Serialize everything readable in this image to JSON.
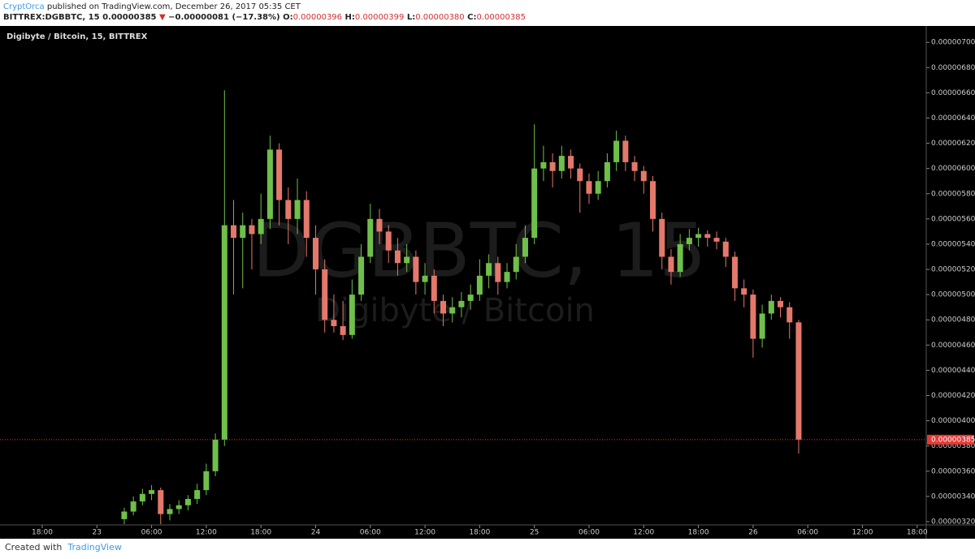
{
  "header": {
    "author": "CryptOrca",
    "published": " published on TradingView.com, December 26, 2017 05:35 CET",
    "symbol": "BITTREX:DGBBTC, 15",
    "last": "0.00000385",
    "arrow": "▼",
    "change": "−0.00000081 (−17.38%)",
    "o_label": "O:",
    "o": "0.00000396",
    "h_label": "H:",
    "h": "0.00000399",
    "l_label": "L:",
    "l": "0.00000380",
    "c_label": "C:",
    "c": "0.00000385"
  },
  "chart_data": {
    "type": "candlestick",
    "title": "Digibyte / Bitcoin, 15, BITTREX",
    "watermark": "DGBBTC, 15",
    "watermark_sub": "Digibyte / Bitcoin",
    "up_color": "#6fbf4a",
    "down_color": "#e3786b",
    "categories": [
      null,
      null,
      null,
      null,
      "18:00",
      null,
      null,
      null,
      null,
      null,
      "23",
      null,
      null,
      null,
      null,
      null,
      "06:00",
      null,
      null,
      null,
      null,
      null,
      "12:00",
      null,
      null,
      null,
      null,
      null,
      "18:00",
      null,
      null,
      null,
      null,
      null,
      "24",
      null,
      null,
      null,
      null,
      null,
      "06:00",
      null,
      null,
      null,
      null,
      null,
      "12:00",
      null,
      null,
      null,
      null,
      null,
      "18:00",
      null,
      null,
      null,
      null,
      null,
      "25",
      null,
      null,
      null,
      null,
      null,
      "06:00",
      null,
      null,
      null,
      null,
      null,
      "12:00",
      null,
      null,
      null,
      null,
      null,
      "18:00",
      null,
      null,
      null,
      null,
      null,
      "26",
      null,
      null,
      null,
      null,
      null,
      "06:00",
      null,
      null,
      null,
      null,
      null,
      "12:00",
      null,
      null,
      null,
      null,
      null,
      "18:00",
      null
    ],
    "open": [
      null,
      null,
      null,
      null,
      null,
      null,
      null,
      null,
      null,
      null,
      null,
      null,
      null,
      3.22e-06,
      3.28e-06,
      3.36e-06,
      3.42e-06,
      3.45e-06,
      3.26e-06,
      3.3e-06,
      3.33e-06,
      3.38e-06,
      3.45e-06,
      3.6e-06,
      3.85e-06,
      5.55e-06,
      5.45e-06,
      5.55e-06,
      5.48e-06,
      5.6e-06,
      6.15e-06,
      5.75e-06,
      5.6e-06,
      5.75e-06,
      5.45e-06,
      5.2e-06,
      4.8e-06,
      4.75e-06,
      4.68e-06,
      5e-06,
      5.3e-06,
      5.6e-06,
      5.5e-06,
      5.35e-06,
      5.25e-06,
      5.3e-06,
      5.1e-06,
      5.15e-06,
      4.95e-06,
      4.85e-06,
      4.9e-06,
      4.95e-06,
      5e-06,
      5.15e-06,
      5.25e-06,
      5.1e-06,
      5.18e-06,
      5.3e-06,
      5.45e-06,
      6e-06,
      6.05e-06,
      5.98e-06,
      6.1e-06,
      6e-06,
      5.9e-06,
      5.8e-06,
      5.9e-06,
      6.05e-06,
      6.22e-06,
      6.05e-06,
      5.98e-06,
      5.9e-06,
      5.6e-06,
      5.3e-06,
      5.18e-06,
      5.4e-06,
      5.45e-06,
      5.48e-06,
      5.45e-06,
      5.42e-06,
      5.3e-06,
      5.05e-06,
      5e-06,
      4.65e-06,
      4.85e-06,
      4.95e-06,
      4.9e-06,
      4.78e-06,
      null,
      null,
      null,
      null,
      null,
      null,
      null,
      null,
      null,
      null,
      null,
      null,
      null,
      null
    ],
    "high": [
      null,
      null,
      null,
      null,
      null,
      null,
      null,
      null,
      null,
      null,
      null,
      null,
      null,
      3.31e-06,
      3.4e-06,
      3.46e-06,
      3.49e-06,
      3.47e-06,
      3.34e-06,
      3.37e-06,
      3.41e-06,
      3.5e-06,
      3.66e-06,
      3.9e-06,
      6.62e-06,
      5.75e-06,
      5.65e-06,
      5.6e-06,
      5.8e-06,
      6.26e-06,
      6.2e-06,
      5.85e-06,
      5.92e-06,
      5.82e-06,
      5.55e-06,
      5.28e-06,
      5e-06,
      4.95e-06,
      5.12e-06,
      5.4e-06,
      5.72e-06,
      5.68e-06,
      5.55e-06,
      5.45e-06,
      5.4e-06,
      5.35e-06,
      5.25e-06,
      5.2e-06,
      5e-06,
      4.98e-06,
      5.02e-06,
      5.08e-06,
      5.28e-06,
      5.32e-06,
      5.3e-06,
      5.25e-06,
      5.4e-06,
      5.55e-06,
      6.35e-06,
      6.18e-06,
      6.12e-06,
      6.18e-06,
      6.15e-06,
      6.04e-06,
      5.96e-06,
      5.98e-06,
      6.12e-06,
      6.3e-06,
      6.26e-06,
      6.1e-06,
      6.02e-06,
      5.94e-06,
      5.65e-06,
      5.36e-06,
      5.48e-06,
      5.52e-06,
      5.53e-06,
      5.51e-06,
      5.5e-06,
      5.45e-06,
      5.34e-06,
      5.12e-06,
      5.04e-06,
      4.92e-06,
      5e-06,
      4.98e-06,
      4.94e-06,
      4.8e-06,
      null,
      null,
      null,
      null,
      null,
      null,
      null,
      null,
      null,
      null,
      null,
      null,
      null,
      null
    ],
    "low": [
      null,
      null,
      null,
      null,
      null,
      null,
      null,
      null,
      null,
      null,
      null,
      null,
      null,
      3.18e-06,
      3.25e-06,
      3.33e-06,
      3.37e-06,
      3.18e-06,
      3.21e-06,
      3.26e-06,
      3.29e-06,
      3.34e-06,
      3.41e-06,
      3.56e-06,
      3.8e-06,
      5e-06,
      5.05e-06,
      5.2e-06,
      5.4e-06,
      5.52e-06,
      5.55e-06,
      5.4e-06,
      5.48e-06,
      5.3e-06,
      5e-06,
      4.7e-06,
      4.7e-06,
      4.64e-06,
      4.65e-06,
      4.95e-06,
      5.25e-06,
      5.4e-06,
      5.25e-06,
      5.15e-06,
      5.18e-06,
      5e-06,
      5e-06,
      4.85e-06,
      4.75e-06,
      4.78e-06,
      4.82e-06,
      4.88e-06,
      4.95e-06,
      5.05e-06,
      5e-06,
      5.05e-06,
      5.12e-06,
      5.25e-06,
      5.4e-06,
      5.9e-06,
      5.85e-06,
      5.92e-06,
      5.92e-06,
      5.65e-06,
      5.72e-06,
      5.75e-06,
      5.85e-06,
      5.98e-06,
      5.98e-06,
      5.9e-06,
      5.8e-06,
      5.5e-06,
      5.2e-06,
      5.08e-06,
      5.14e-06,
      5.35e-06,
      5.38e-06,
      5.38e-06,
      5.36e-06,
      5.22e-06,
      4.95e-06,
      4.9e-06,
      4.5e-06,
      4.58e-06,
      4.8e-06,
      4.82e-06,
      4.65e-06,
      3.74e-06,
      null,
      null,
      null,
      null,
      null,
      null,
      null,
      null,
      null,
      null,
      null,
      null,
      null,
      null
    ],
    "close": [
      null,
      null,
      null,
      null,
      null,
      null,
      null,
      null,
      null,
      null,
      null,
      null,
      null,
      3.28e-06,
      3.36e-06,
      3.42e-06,
      3.45e-06,
      3.26e-06,
      3.3e-06,
      3.33e-06,
      3.38e-06,
      3.45e-06,
      3.6e-06,
      3.85e-06,
      5.55e-06,
      5.45e-06,
      5.55e-06,
      5.48e-06,
      5.6e-06,
      6.15e-06,
      5.75e-06,
      5.6e-06,
      5.75e-06,
      5.45e-06,
      5.2e-06,
      4.8e-06,
      4.75e-06,
      4.68e-06,
      5e-06,
      5.3e-06,
      5.6e-06,
      5.5e-06,
      5.35e-06,
      5.25e-06,
      5.3e-06,
      5.1e-06,
      5.15e-06,
      4.95e-06,
      4.85e-06,
      4.9e-06,
      4.95e-06,
      5e-06,
      5.15e-06,
      5.25e-06,
      5.1e-06,
      5.18e-06,
      5.3e-06,
      5.45e-06,
      6e-06,
      6.05e-06,
      5.98e-06,
      6.1e-06,
      6e-06,
      5.9e-06,
      5.8e-06,
      5.9e-06,
      6.05e-06,
      6.22e-06,
      6.05e-06,
      5.98e-06,
      5.9e-06,
      5.6e-06,
      5.3e-06,
      5.18e-06,
      5.4e-06,
      5.45e-06,
      5.48e-06,
      5.45e-06,
      5.42e-06,
      5.3e-06,
      5.05e-06,
      5e-06,
      4.65e-06,
      4.85e-06,
      4.95e-06,
      4.9e-06,
      4.78e-06,
      3.85e-06,
      null,
      null,
      null,
      null,
      null,
      null,
      null,
      null,
      null,
      null,
      null,
      null,
      null,
      null
    ],
    "ylim": [
      3.174e-06,
      7.13e-06
    ],
    "yticks": [
      {
        "value": 3.2e-06,
        "label": "0.00000320"
      },
      {
        "value": 3.4e-06,
        "label": "0.00000340"
      },
      {
        "value": 3.6e-06,
        "label": "0.00000360"
      },
      {
        "value": 3.8e-06,
        "label": "0.00000380"
      },
      {
        "value": 4e-06,
        "label": "0.00000400"
      },
      {
        "value": 4.2e-06,
        "label": "0.00000420"
      },
      {
        "value": 4.4e-06,
        "label": "0.00000440"
      },
      {
        "value": 4.6e-06,
        "label": "0.00000460"
      },
      {
        "value": 4.8e-06,
        "label": "0.00000480"
      },
      {
        "value": 5e-06,
        "label": "0.00000500"
      },
      {
        "value": 5.2e-06,
        "label": "0.00000520"
      },
      {
        "value": 5.4e-06,
        "label": "0.00000540"
      },
      {
        "value": 5.6e-06,
        "label": "0.00000560"
      },
      {
        "value": 5.8e-06,
        "label": "0.00000580"
      },
      {
        "value": 6e-06,
        "label": "0.00000600"
      },
      {
        "value": 6.2e-06,
        "label": "0.00000620"
      },
      {
        "value": 6.4e-06,
        "label": "0.00000640"
      },
      {
        "value": 6.6e-06,
        "label": "0.00000660"
      },
      {
        "value": 6.8e-06,
        "label": "0.00000680"
      },
      {
        "value": 7e-06,
        "label": "0.00000700"
      }
    ],
    "last_price": {
      "value": 3.85e-06,
      "label": "0.00000385"
    },
    "last_price_color": "#e53935"
  },
  "footer": {
    "created": "Created with",
    "brand": "TradingView"
  }
}
